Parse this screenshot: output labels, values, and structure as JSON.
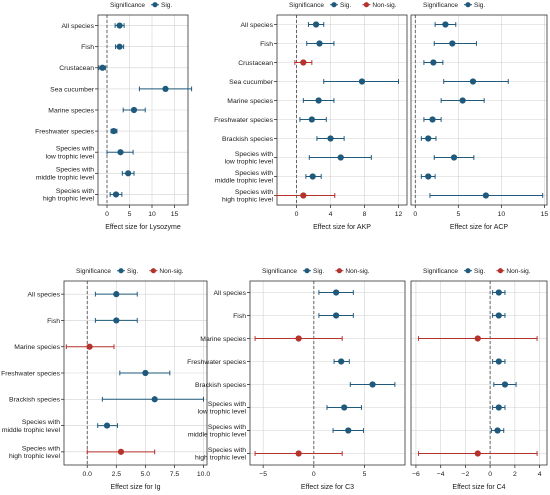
{
  "colors": {
    "sig": "#1f5a7d",
    "nonsig": "#b5332c",
    "grid": "#d2d2d2",
    "frame": "#333333",
    "zero_line": "#555555"
  },
  "legend": {
    "title": "Significance",
    "sig_label": "Sig.",
    "nonsig_label": "Non-sig."
  },
  "chart_data": [
    {
      "type": "scatter",
      "title": "",
      "xlabel": "Effect size for Lysozyme",
      "ylabel": "",
      "xlim": [
        -2,
        18
      ],
      "xticks": [
        0,
        5,
        10,
        15
      ],
      "show_labels": true,
      "legend_items": [
        "sig"
      ],
      "grid": true,
      "categories": [
        "All species",
        "Fish",
        "Crustacean",
        "Sea cucumber",
        "Marine species",
        "Freshwater species",
        "Species with\nlow trophic level",
        "Species with\nmiddle trophic level",
        "Species with\nhigh trophic level"
      ],
      "estimates": [
        2.8,
        2.8,
        -1.0,
        13.0,
        6.0,
        1.5,
        3.0,
        4.7,
        2.0
      ],
      "ci_low": [
        1.8,
        1.9,
        -1.8,
        7.2,
        3.6,
        0.9,
        0.0,
        3.4,
        0.7
      ],
      "ci_high": [
        3.8,
        3.7,
        -0.3,
        18.8,
        8.5,
        2.2,
        5.8,
        6.0,
        3.3
      ],
      "significance": [
        "sig",
        "sig",
        "sig",
        "sig",
        "sig",
        "sig",
        "sig",
        "sig",
        "sig"
      ]
    },
    {
      "type": "scatter",
      "title": "",
      "xlabel": "Effect size for AKP",
      "ylabel": "",
      "xlim": [
        -2.3,
        13.0
      ],
      "xticks": [
        0,
        4,
        8,
        12
      ],
      "show_labels": true,
      "legend_items": [
        "sig",
        "nonsig"
      ],
      "grid": true,
      "categories": [
        "All species",
        "Fish",
        "Crustacean",
        "Sea cucumber",
        "Marine species",
        "Freshwater species",
        "Brackish species",
        "Species with\nlow trophic level",
        "Species with\nmiddle trophic level",
        "Species with\nhigh trophic level"
      ],
      "estimates": [
        2.3,
        2.7,
        0.8,
        7.7,
        2.6,
        1.8,
        4.0,
        5.2,
        1.9,
        0.8
      ],
      "ci_low": [
        1.4,
        1.2,
        -0.2,
        3.2,
        0.8,
        0.4,
        2.4,
        1.5,
        1.1,
        -2.3
      ],
      "ci_high": [
        3.2,
        4.4,
        1.8,
        12.0,
        4.4,
        3.5,
        5.6,
        8.8,
        2.9,
        4.5
      ],
      "significance": [
        "sig",
        "sig",
        "nonsig",
        "sig",
        "sig",
        "sig",
        "sig",
        "sig",
        "sig",
        "nonsig"
      ]
    },
    {
      "type": "scatter",
      "title": "",
      "xlabel": "Effect size for ACP",
      "ylabel": "",
      "xlim": [
        -0.5,
        15.3
      ],
      "xticks": [
        0,
        5,
        10,
        15
      ],
      "show_labels": false,
      "legend_items": [
        "sig"
      ],
      "grid": true,
      "categories": [
        "All species",
        "Fish",
        "Crustacean",
        "Sea cucumber",
        "Marine species",
        "Freshwater species",
        "Brackish species",
        "Species with\nlow trophic level",
        "Species with\nmiddle trophic level",
        "Species with\nhigh trophic level"
      ],
      "estimates": [
        3.5,
        4.3,
        2.1,
        6.7,
        5.5,
        2.0,
        1.5,
        4.5,
        1.5,
        8.2
      ],
      "ci_low": [
        2.3,
        2.2,
        1.0,
        3.3,
        3.0,
        1.0,
        0.7,
        2.2,
        0.7,
        1.7
      ],
      "ci_high": [
        4.7,
        7.1,
        3.2,
        10.8,
        8.0,
        3.0,
        2.4,
        6.8,
        2.3,
        14.8
      ],
      "significance": [
        "sig",
        "sig",
        "sig",
        "sig",
        "sig",
        "sig",
        "sig",
        "sig",
        "sig",
        "sig"
      ]
    },
    {
      "type": "scatter",
      "title": "",
      "xlabel": "Effect size for Ig",
      "ylabel": "",
      "xlim": [
        -2.0,
        10.3
      ],
      "xticks": [
        0.0,
        2.5,
        5.0,
        7.5,
        10.0
      ],
      "show_labels": true,
      "legend_items": [
        "sig",
        "nonsig"
      ],
      "grid": true,
      "categories": [
        "All species",
        "Fish",
        "Marine species",
        "Freshwater species",
        "Brackish species",
        "Species with\nmiddle trophic level",
        "Species with\nhigh trophic level"
      ],
      "estimates": [
        2.5,
        2.5,
        0.2,
        5.0,
        5.8,
        1.7,
        2.9
      ],
      "ci_low": [
        0.7,
        0.7,
        -1.8,
        2.8,
        1.3,
        0.9,
        0.0
      ],
      "ci_high": [
        4.3,
        4.3,
        2.3,
        7.1,
        10.0,
        2.6,
        5.8
      ],
      "significance": [
        "sig",
        "sig",
        "nonsig",
        "sig",
        "sig",
        "sig",
        "nonsig"
      ]
    },
    {
      "type": "scatter",
      "title": "",
      "xlabel": "Effect size for C3",
      "ylabel": "",
      "xlim": [
        -6.3,
        9.0
      ],
      "xticks": [
        -5,
        0,
        5
      ],
      "show_labels": true,
      "legend_items": [
        "sig",
        "nonsig"
      ],
      "grid": true,
      "categories": [
        "All species",
        "Fish",
        "Marine species",
        "Freshwater species",
        "Brackish species",
        "Species with\nlow trophic level",
        "Species with\nmiddle trophic level",
        "Species with\nhigh trophic level"
      ],
      "estimates": [
        2.2,
        2.2,
        -1.5,
        2.7,
        5.8,
        3.0,
        3.4,
        -1.5
      ],
      "ci_low": [
        0.5,
        0.5,
        -5.8,
        2.0,
        3.6,
        1.3,
        1.9,
        -5.8
      ],
      "ci_high": [
        3.9,
        3.9,
        2.8,
        3.5,
        8.0,
        4.7,
        4.9,
        2.8
      ],
      "significance": [
        "sig",
        "sig",
        "nonsig",
        "sig",
        "sig",
        "sig",
        "sig",
        "nonsig"
      ]
    },
    {
      "type": "scatter",
      "title": "",
      "xlabel": "Effect size for C4",
      "ylabel": "",
      "xlim": [
        -6.4,
        4.6
      ],
      "xticks": [
        -6,
        -4,
        -2,
        0,
        2,
        4
      ],
      "show_labels": false,
      "legend_items": [
        "sig",
        "nonsig"
      ],
      "grid": true,
      "categories": [
        "All species",
        "Fish",
        "Marine species",
        "Freshwater species",
        "Brackish species",
        "Species with\nlow trophic level",
        "Species with\nmiddle trophic level",
        "Species with\nhigh trophic level"
      ],
      "estimates": [
        0.7,
        0.7,
        -1.0,
        0.7,
        1.2,
        0.7,
        0.6,
        -1.0
      ],
      "ci_low": [
        0.2,
        0.2,
        -5.8,
        0.2,
        0.3,
        0.2,
        0.1,
        -5.8
      ],
      "ci_high": [
        1.2,
        1.2,
        3.8,
        1.2,
        2.1,
        1.2,
        1.1,
        3.8
      ],
      "significance": [
        "sig",
        "sig",
        "nonsig",
        "sig",
        "sig",
        "sig",
        "sig",
        "nonsig"
      ]
    }
  ]
}
